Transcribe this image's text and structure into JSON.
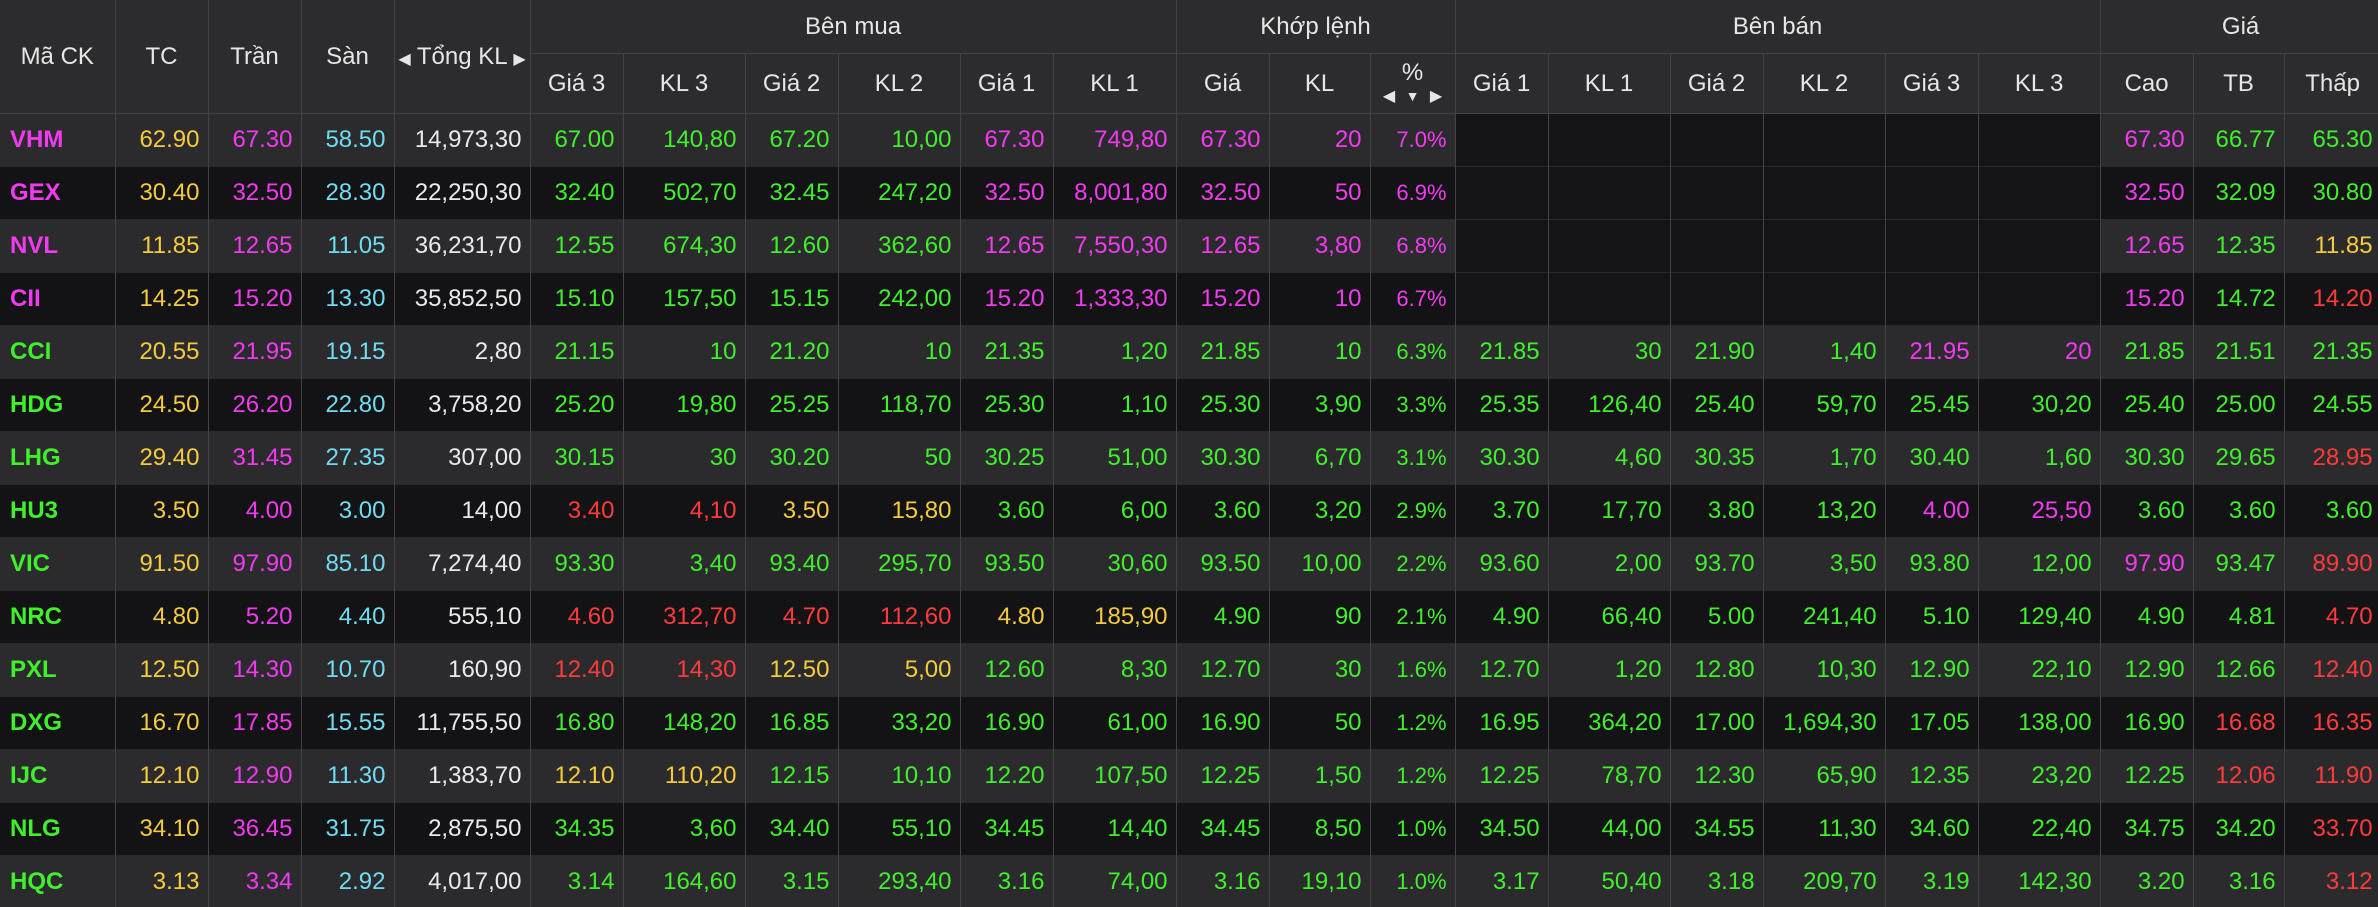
{
  "colors": {
    "ref": "#f5cb3c",
    "ceil": "#f23af0",
    "floor": "#6fdcf2",
    "up": "#3ff02b",
    "down": "#ff3b3b",
    "white": "#eaeaea"
  },
  "header": {
    "ma_ck": "Mã CK",
    "tc": "TC",
    "tran": "Trần",
    "san": "Sàn",
    "tong_kl": "Tổng KL",
    "ben_mua": "Bên mua",
    "khop_lenh": "Khớp lệnh",
    "ben_ban": "Bên bán",
    "gia": "Giá",
    "gia3": "Giá 3",
    "kl3": "KL 3",
    "gia2": "Giá 2",
    "kl2": "KL 2",
    "gia1": "Giá 1",
    "kl1": "KL 1",
    "khop_gia": "Giá",
    "khop_kl": "KL",
    "pct": "%",
    "cao": "Cao",
    "tb": "TB",
    "thap": "Thấp",
    "left_arrow_icon": "triangle-left-icon",
    "right_arrow_icon": "triangle-right-icon",
    "sort_icon": "sort-desc-icon"
  },
  "rows": [
    {
      "sym": "VHM",
      "tc": "62.90",
      "tran": "67.30",
      "san": "58.50",
      "tkl": "14,973,30",
      "b3": "67.00",
      "bk3": "140,80",
      "b2": "67.20",
      "bk2": "10,00",
      "b1": "67.30",
      "bk1": "749,80",
      "mp": "67.30",
      "mk": "20",
      "pct": "7.0%",
      "s1": "",
      "sk1": "",
      "s2": "",
      "sk2": "",
      "s3": "",
      "sk3": "",
      "cao": "67.30",
      "tb": "66.77",
      "thap": "65.30"
    },
    {
      "sym": "GEX",
      "tc": "30.40",
      "tran": "32.50",
      "san": "28.30",
      "tkl": "22,250,30",
      "b3": "32.40",
      "bk3": "502,70",
      "b2": "32.45",
      "bk2": "247,20",
      "b1": "32.50",
      "bk1": "8,001,80",
      "mp": "32.50",
      "mk": "50",
      "pct": "6.9%",
      "s1": "",
      "sk1": "",
      "s2": "",
      "sk2": "",
      "s3": "",
      "sk3": "",
      "cao": "32.50",
      "tb": "32.09",
      "thap": "30.80"
    },
    {
      "sym": "NVL",
      "tc": "11.85",
      "tran": "12.65",
      "san": "11.05",
      "tkl": "36,231,70",
      "b3": "12.55",
      "bk3": "674,30",
      "b2": "12.60",
      "bk2": "362,60",
      "b1": "12.65",
      "bk1": "7,550,30",
      "mp": "12.65",
      "mk": "3,80",
      "pct": "6.8%",
      "s1": "",
      "sk1": "",
      "s2": "",
      "sk2": "",
      "s3": "",
      "sk3": "",
      "cao": "12.65",
      "tb": "12.35",
      "thap": "11.85"
    },
    {
      "sym": "CII",
      "tc": "14.25",
      "tran": "15.20",
      "san": "13.30",
      "tkl": "35,852,50",
      "b3": "15.10",
      "bk3": "157,50",
      "b2": "15.15",
      "bk2": "242,00",
      "b1": "15.20",
      "bk1": "1,333,30",
      "mp": "15.20",
      "mk": "10",
      "pct": "6.7%",
      "s1": "",
      "sk1": "",
      "s2": "",
      "sk2": "",
      "s3": "",
      "sk3": "",
      "cao": "15.20",
      "tb": "14.72",
      "thap": "14.20"
    },
    {
      "sym": "CCI",
      "tc": "20.55",
      "tran": "21.95",
      "san": "19.15",
      "tkl": "2,80",
      "b3": "21.15",
      "bk3": "10",
      "b2": "21.20",
      "bk2": "10",
      "b1": "21.35",
      "bk1": "1,20",
      "mp": "21.85",
      "mk": "10",
      "pct": "6.3%",
      "s1": "21.85",
      "sk1": "30",
      "s2": "21.90",
      "sk2": "1,40",
      "s3": "21.95",
      "sk3": "20",
      "cao": "21.85",
      "tb": "21.51",
      "thap": "21.35"
    },
    {
      "sym": "HDG",
      "tc": "24.50",
      "tran": "26.20",
      "san": "22.80",
      "tkl": "3,758,20",
      "b3": "25.20",
      "bk3": "19,80",
      "b2": "25.25",
      "bk2": "118,70",
      "b1": "25.30",
      "bk1": "1,10",
      "mp": "25.30",
      "mk": "3,90",
      "pct": "3.3%",
      "s1": "25.35",
      "sk1": "126,40",
      "s2": "25.40",
      "sk2": "59,70",
      "s3": "25.45",
      "sk3": "30,20",
      "cao": "25.40",
      "tb": "25.00",
      "thap": "24.55"
    },
    {
      "sym": "LHG",
      "tc": "29.40",
      "tran": "31.45",
      "san": "27.35",
      "tkl": "307,00",
      "b3": "30.15",
      "bk3": "30",
      "b2": "30.20",
      "bk2": "50",
      "b1": "30.25",
      "bk1": "51,00",
      "mp": "30.30",
      "mk": "6,70",
      "pct": "3.1%",
      "s1": "30.30",
      "sk1": "4,60",
      "s2": "30.35",
      "sk2": "1,70",
      "s3": "30.40",
      "sk3": "1,60",
      "cao": "30.30",
      "tb": "29.65",
      "thap": "28.95"
    },
    {
      "sym": "HU3",
      "tc": "3.50",
      "tran": "4.00",
      "san": "3.00",
      "tkl": "14,00",
      "b3": "3.40",
      "bk3": "4,10",
      "b2": "3.50",
      "bk2": "15,80",
      "b1": "3.60",
      "bk1": "6,00",
      "mp": "3.60",
      "mk": "3,20",
      "pct": "2.9%",
      "s1": "3.70",
      "sk1": "17,70",
      "s2": "3.80",
      "sk2": "13,20",
      "s3": "4.00",
      "sk3": "25,50",
      "cao": "3.60",
      "tb": "3.60",
      "thap": "3.60"
    },
    {
      "sym": "VIC",
      "tc": "91.50",
      "tran": "97.90",
      "san": "85.10",
      "tkl": "7,274,40",
      "b3": "93.30",
      "bk3": "3,40",
      "b2": "93.40",
      "bk2": "295,70",
      "b1": "93.50",
      "bk1": "30,60",
      "mp": "93.50",
      "mk": "10,00",
      "pct": "2.2%",
      "s1": "93.60",
      "sk1": "2,00",
      "s2": "93.70",
      "sk2": "3,50",
      "s3": "93.80",
      "sk3": "12,00",
      "cao": "97.90",
      "tb": "93.47",
      "thap": "89.90"
    },
    {
      "sym": "NRC",
      "tc": "4.80",
      "tran": "5.20",
      "san": "4.40",
      "tkl": "555,10",
      "b3": "4.60",
      "bk3": "312,70",
      "b2": "4.70",
      "bk2": "112,60",
      "b1": "4.80",
      "bk1": "185,90",
      "mp": "4.90",
      "mk": "90",
      "pct": "2.1%",
      "s1": "4.90",
      "sk1": "66,40",
      "s2": "5.00",
      "sk2": "241,40",
      "s3": "5.10",
      "sk3": "129,40",
      "cao": "4.90",
      "tb": "4.81",
      "thap": "4.70"
    },
    {
      "sym": "PXL",
      "tc": "12.50",
      "tran": "14.30",
      "san": "10.70",
      "tkl": "160,90",
      "b3": "12.40",
      "bk3": "14,30",
      "b2": "12.50",
      "bk2": "5,00",
      "b1": "12.60",
      "bk1": "8,30",
      "mp": "12.70",
      "mk": "30",
      "pct": "1.6%",
      "s1": "12.70",
      "sk1": "1,20",
      "s2": "12.80",
      "sk2": "10,30",
      "s3": "12.90",
      "sk3": "22,10",
      "cao": "12.90",
      "tb": "12.66",
      "thap": "12.40"
    },
    {
      "sym": "DXG",
      "tc": "16.70",
      "tran": "17.85",
      "san": "15.55",
      "tkl": "11,755,50",
      "b3": "16.80",
      "bk3": "148,20",
      "b2": "16.85",
      "bk2": "33,20",
      "b1": "16.90",
      "bk1": "61,00",
      "mp": "16.90",
      "mk": "50",
      "pct": "1.2%",
      "s1": "16.95",
      "sk1": "364,20",
      "s2": "17.00",
      "sk2": "1,694,30",
      "s3": "17.05",
      "sk3": "138,00",
      "cao": "16.90",
      "tb": "16.68",
      "thap": "16.35"
    },
    {
      "sym": "IJC",
      "tc": "12.10",
      "tran": "12.90",
      "san": "11.30",
      "tkl": "1,383,70",
      "b3": "12.10",
      "bk3": "110,20",
      "b2": "12.15",
      "bk2": "10,10",
      "b1": "12.20",
      "bk1": "107,50",
      "mp": "12.25",
      "mk": "1,50",
      "pct": "1.2%",
      "s1": "12.25",
      "sk1": "78,70",
      "s2": "12.30",
      "sk2": "65,90",
      "s3": "12.35",
      "sk3": "23,20",
      "cao": "12.25",
      "tb": "12.06",
      "thap": "11.90"
    },
    {
      "sym": "NLG",
      "tc": "34.10",
      "tran": "36.45",
      "san": "31.75",
      "tkl": "2,875,50",
      "b3": "34.35",
      "bk3": "3,60",
      "b2": "34.40",
      "bk2": "55,10",
      "b1": "34.45",
      "bk1": "14,40",
      "mp": "34.45",
      "mk": "8,50",
      "pct": "1.0%",
      "s1": "34.50",
      "sk1": "44,00",
      "s2": "34.55",
      "sk2": "11,30",
      "s3": "34.60",
      "sk3": "22,40",
      "cao": "34.75",
      "tb": "34.20",
      "thap": "33.70"
    },
    {
      "sym": "HQC",
      "tc": "3.13",
      "tran": "3.34",
      "san": "2.92",
      "tkl": "4,017,00",
      "b3": "3.14",
      "bk3": "164,60",
      "b2": "3.15",
      "bk2": "293,40",
      "b1": "3.16",
      "bk1": "74,00",
      "mp": "3.16",
      "mk": "19,10",
      "pct": "1.0%",
      "s1": "3.17",
      "sk1": "50,40",
      "s2": "3.18",
      "sk2": "209,70",
      "s3": "3.19",
      "sk3": "142,30",
      "cao": "3.20",
      "tb": "3.16",
      "thap": "3.12"
    }
  ]
}
